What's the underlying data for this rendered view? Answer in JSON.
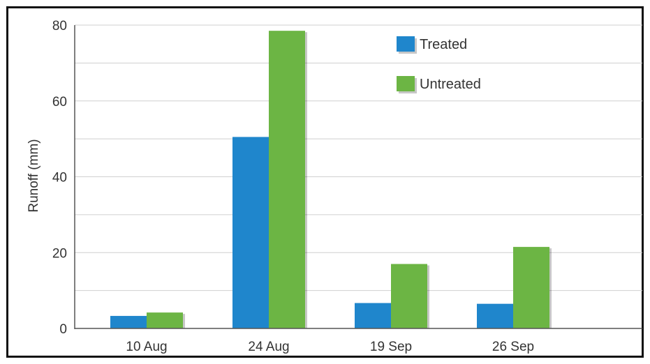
{
  "chart_data": {
    "type": "bar",
    "title": "",
    "xlabel": "",
    "ylabel": "Runoff (mm)",
    "ylim": [
      0,
      80
    ],
    "yticks": [
      0,
      20,
      40,
      60,
      80
    ],
    "minor_gridlines": [
      10,
      30,
      50,
      70
    ],
    "grid": true,
    "legend_position": "top-center",
    "categories": [
      "10 Aug",
      "24 Aug",
      "19 Sep",
      "26 Sep"
    ],
    "series": [
      {
        "name": "Treated",
        "color": "#1f86cc",
        "values": [
          3.3,
          50.5,
          6.7,
          6.5
        ]
      },
      {
        "name": "Untreated",
        "color": "#6cb544",
        "values": [
          4.2,
          78.5,
          17.0,
          21.5
        ]
      }
    ]
  }
}
